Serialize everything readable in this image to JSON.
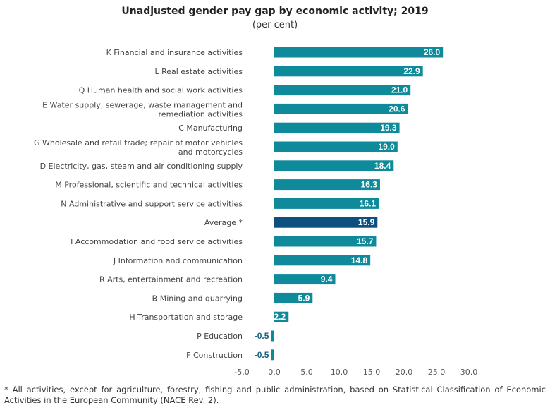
{
  "chart_data": {
    "type": "bar",
    "orientation": "horizontal",
    "title": "Unadjusted gender pay gap by economic activity; 2019",
    "subtitle": "(per cent)",
    "categories": [
      [
        "K Financial and insurance activities"
      ],
      [
        "L Real estate activities"
      ],
      [
        "Q Human health and social work activities"
      ],
      [
        "E Water supply, sewerage, waste management and",
        "remediation activities"
      ],
      [
        "C Manufacturing"
      ],
      [
        "G Wholesale and  retail trade; repair of motor vehicles",
        "and motorcycles"
      ],
      [
        "D Electricity, gas, steam and air conditioning supply"
      ],
      [
        "M Professional, scientific and technical activities"
      ],
      [
        "N Administrative and support service activities"
      ],
      [
        "Average *"
      ],
      [
        "I Accommodation and food service activities"
      ],
      [
        "J Information and communication"
      ],
      [
        "R Arts, entertainment and recreation"
      ],
      [
        "B Mining and quarrying"
      ],
      [
        "H Transportation and storage"
      ],
      [
        "P Education"
      ],
      [
        "F Construction"
      ]
    ],
    "values": [
      26.0,
      22.9,
      21.0,
      20.6,
      19.3,
      19.0,
      18.4,
      16.3,
      16.1,
      15.9,
      15.7,
      14.8,
      9.4,
      5.9,
      2.2,
      -0.5,
      -0.5
    ],
    "value_labels": [
      "26.0",
      "22.9",
      "21.0",
      "20.6",
      "19.3",
      "19.0",
      "18.4",
      "16.3",
      "16.1",
      "15.9",
      "15.7",
      "14.8",
      "9.4",
      "5.9",
      "2.2",
      "-0.5",
      "-0.5"
    ],
    "highlight_index": 9,
    "xlim": [
      -5.0,
      30.0
    ],
    "xticks": [
      "-5.0",
      "0.0",
      "5.0",
      "10.0",
      "15.0",
      "20.0",
      "25.0",
      "30.0"
    ],
    "xtick_values": [
      -5,
      0,
      5,
      10,
      15,
      20,
      25,
      30
    ],
    "grid": false,
    "colors": {
      "bar": "#0f8a9a",
      "highlight": "#0d4f7f",
      "label_on_bar": "#ffffff",
      "label_outside": "#1a5f80"
    }
  },
  "footnote": "* All activities, except for agriculture, forestry, fishing and public administration, based on Statistical Classification of Economic Activities in the European Community (NACE Rev. 2)."
}
